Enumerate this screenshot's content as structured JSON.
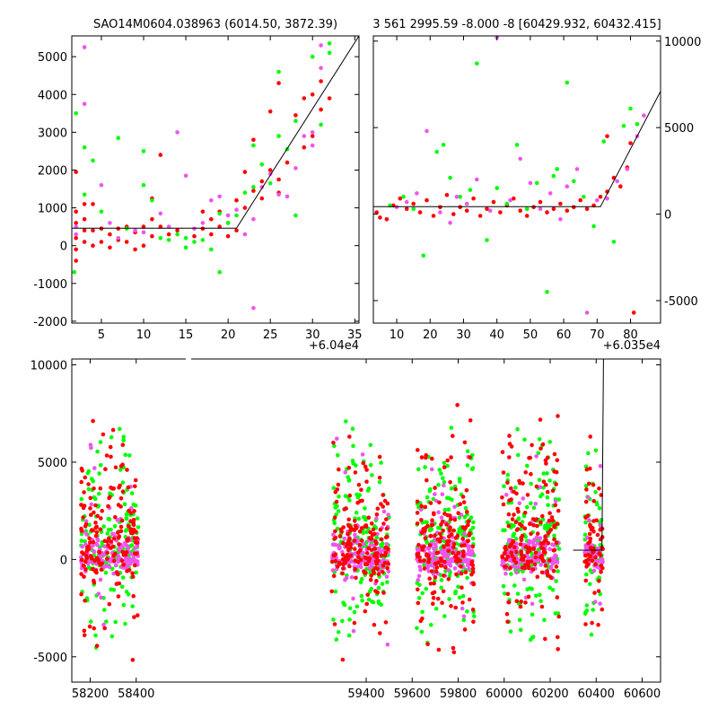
{
  "chart_data": [
    {
      "id": "top-left",
      "type": "scatter",
      "title": "SAO14M0604.038963 (6014.50, 3872.39)",
      "x_offset_label": "+6.04e4",
      "xlim": [
        1.5,
        35.5
      ],
      "ylim": [
        -2050,
        5550
      ],
      "xticks": [
        5,
        10,
        15,
        20,
        25,
        30,
        35
      ],
      "yticks": [
        -2000,
        -1000,
        0,
        1000,
        2000,
        3000,
        4000,
        5000
      ],
      "ytick_side": "left",
      "colors": {
        "red": "#ff0000",
        "green": "#00ff00",
        "magenta": "#ee55ee",
        "line": "#000000"
      },
      "model_line": [
        [
          1.5,
          460
        ],
        [
          21,
          460
        ],
        [
          35.5,
          5550
        ]
      ],
      "series": [
        {
          "color": "red",
          "points": [
            [
              2,
              1950
            ],
            [
              2,
              900
            ],
            [
              2,
              600
            ],
            [
              2,
              200
            ],
            [
              2,
              -100
            ],
            [
              2,
              -400
            ],
            [
              3,
              1100
            ],
            [
              3,
              700
            ],
            [
              3,
              400
            ],
            [
              3,
              100
            ],
            [
              4,
              1100
            ],
            [
              4,
              400
            ],
            [
              4,
              0
            ],
            [
              5,
              450
            ],
            [
              5,
              100
            ],
            [
              6,
              300
            ],
            [
              6,
              -50
            ],
            [
              7,
              450
            ],
            [
              7,
              150
            ],
            [
              8,
              500
            ],
            [
              8,
              100
            ],
            [
              9,
              350
            ],
            [
              9,
              -100
            ],
            [
              10,
              500
            ],
            [
              10,
              0
            ],
            [
              11,
              1250
            ],
            [
              11,
              700
            ],
            [
              11,
              250
            ],
            [
              12,
              2400
            ],
            [
              12,
              500
            ],
            [
              13,
              300
            ],
            [
              14,
              400
            ],
            [
              16,
              250
            ],
            [
              17,
              900
            ],
            [
              17,
              450
            ],
            [
              18,
              700
            ],
            [
              18,
              300
            ],
            [
              19,
              900
            ],
            [
              19,
              500
            ],
            [
              20,
              600
            ],
            [
              20,
              250
            ],
            [
              21,
              1200
            ],
            [
              21,
              400
            ],
            [
              22,
              1950
            ],
            [
              22,
              1000
            ],
            [
              23,
              2800
            ],
            [
              23,
              1450
            ],
            [
              24,
              1700
            ],
            [
              24,
              1250
            ],
            [
              25,
              3550
            ],
            [
              25,
              2000
            ],
            [
              26,
              4300
            ],
            [
              26,
              1750
            ],
            [
              26,
              1400
            ],
            [
              27,
              2200
            ],
            [
              28,
              3450
            ],
            [
              29,
              3900
            ],
            [
              29,
              2600
            ],
            [
              30,
              4000
            ],
            [
              30,
              2900
            ],
            [
              31,
              4350
            ],
            [
              31,
              3600
            ],
            [
              32,
              3900
            ]
          ]
        },
        {
          "color": "green",
          "points": [
            [
              1.8,
              -700
            ],
            [
              2,
              3500
            ],
            [
              3,
              2600
            ],
            [
              3,
              1350
            ],
            [
              4,
              2250
            ],
            [
              5,
              900
            ],
            [
              7,
              2850
            ],
            [
              8,
              450
            ],
            [
              10,
              2500
            ],
            [
              10,
              1600
            ],
            [
              11,
              1200
            ],
            [
              12,
              200
            ],
            [
              13,
              150
            ],
            [
              14,
              300
            ],
            [
              15,
              200
            ],
            [
              15,
              -50
            ],
            [
              16,
              100
            ],
            [
              17,
              150
            ],
            [
              18,
              -100
            ],
            [
              19,
              -700
            ],
            [
              19,
              850
            ],
            [
              20,
              600
            ],
            [
              21,
              800
            ],
            [
              22,
              1400
            ],
            [
              23,
              2650
            ],
            [
              23,
              1550
            ],
            [
              24,
              2150
            ],
            [
              25,
              1650
            ],
            [
              26,
              4600
            ],
            [
              26,
              2900
            ],
            [
              27,
              2550
            ],
            [
              28,
              3300
            ],
            [
              28,
              800
            ],
            [
              30,
              5000
            ],
            [
              31,
              3200
            ],
            [
              32,
              5350
            ],
            [
              32,
              5100
            ]
          ]
        },
        {
          "color": "magenta",
          "points": [
            [
              2,
              500
            ],
            [
              2,
              300
            ],
            [
              3,
              5250
            ],
            [
              3,
              3750
            ],
            [
              5,
              1600
            ],
            [
              6,
              600
            ],
            [
              7,
              200
            ],
            [
              9,
              400
            ],
            [
              10,
              350
            ],
            [
              12,
              850
            ],
            [
              13,
              500
            ],
            [
              14,
              3000
            ],
            [
              15,
              1850
            ],
            [
              16,
              450
            ],
            [
              17,
              600
            ],
            [
              18,
              1200
            ],
            [
              19,
              1300
            ],
            [
              20,
              800
            ],
            [
              21,
              950
            ],
            [
              22,
              300
            ],
            [
              23,
              -1650
            ],
            [
              23,
              700
            ],
            [
              24,
              1550
            ],
            [
              25,
              1900
            ],
            [
              26,
              1350
            ],
            [
              27,
              1300
            ],
            [
              28,
              2050
            ],
            [
              29,
              2900
            ],
            [
              30,
              2650
            ],
            [
              30,
              3000
            ],
            [
              31,
              4700
            ],
            [
              31,
              5300
            ]
          ]
        }
      ]
    },
    {
      "id": "top-right",
      "type": "scatter",
      "title": "3 561 2995.59 -8.000 -8 [60429.932, 60432.415]",
      "x_offset_label": "+6.035e4",
      "xlim": [
        3,
        89
      ],
      "ylim": [
        -6300,
        10300
      ],
      "xticks": [
        10,
        20,
        30,
        40,
        50,
        60,
        70,
        80
      ],
      "yticks": [
        -5000,
        0,
        5000,
        10000
      ],
      "ytick_side": "right",
      "colors": {
        "red": "#ff0000",
        "green": "#00ff00",
        "magenta": "#ee55ee",
        "line": "#000000"
      },
      "model_line": [
        [
          3,
          430
        ],
        [
          71,
          430
        ],
        [
          89,
          7100
        ]
      ],
      "series": [
        {
          "color": "red",
          "points": [
            [
              4,
              100
            ],
            [
              5,
              -200
            ],
            [
              7,
              -300
            ],
            [
              9,
              500
            ],
            [
              11,
              900
            ],
            [
              13,
              300
            ],
            [
              15,
              600
            ],
            [
              17,
              100
            ],
            [
              19,
              800
            ],
            [
              21,
              -100
            ],
            [
              23,
              400
            ],
            [
              25,
              1100
            ],
            [
              27,
              0
            ],
            [
              29,
              400
            ],
            [
              31,
              200
            ],
            [
              33,
              900
            ],
            [
              35,
              -100
            ],
            [
              37,
              300
            ],
            [
              39,
              700
            ],
            [
              41,
              100
            ],
            [
              43,
              500
            ],
            [
              45,
              900
            ],
            [
              47,
              200
            ],
            [
              49,
              -100
            ],
            [
              51,
              400
            ],
            [
              53,
              700
            ],
            [
              55,
              100
            ],
            [
              57,
              300
            ],
            [
              59,
              600
            ],
            [
              61,
              200
            ],
            [
              63,
              400
            ],
            [
              65,
              800
            ],
            [
              67,
              300
            ],
            [
              69,
              500
            ],
            [
              71,
              1000
            ],
            [
              73,
              1300
            ],
            [
              73,
              4500
            ],
            [
              75,
              2100
            ],
            [
              77,
              1600
            ],
            [
              79,
              2700
            ],
            [
              80,
              4100
            ],
            [
              81,
              -5700
            ]
          ]
        },
        {
          "color": "green",
          "points": [
            [
              8,
              500
            ],
            [
              12,
              1000
            ],
            [
              15,
              300
            ],
            [
              18,
              -2400
            ],
            [
              22,
              3600
            ],
            [
              24,
              4000
            ],
            [
              26,
              2100
            ],
            [
              29,
              1000
            ],
            [
              32,
              1400
            ],
            [
              34,
              8700
            ],
            [
              37,
              -1500
            ],
            [
              40,
              1500
            ],
            [
              43,
              600
            ],
            [
              46,
              4000
            ],
            [
              49,
              300
            ],
            [
              52,
              1800
            ],
            [
              55,
              -4500
            ],
            [
              57,
              2200
            ],
            [
              58,
              2600
            ],
            [
              61,
              7600
            ],
            [
              63,
              1900
            ],
            [
              66,
              1000
            ],
            [
              69,
              -700
            ],
            [
              72,
              4200
            ],
            [
              75,
              -1600
            ],
            [
              78,
              5100
            ],
            [
              80,
              6100
            ],
            [
              82,
              5200
            ]
          ]
        },
        {
          "color": "magenta",
          "points": [
            [
              10,
              400
            ],
            [
              13,
              700
            ],
            [
              16,
              1200
            ],
            [
              19,
              4800
            ],
            [
              23,
              100
            ],
            [
              26,
              -500
            ],
            [
              28,
              1000
            ],
            [
              31,
              600
            ],
            [
              34,
              2000
            ],
            [
              38,
              200
            ],
            [
              40,
              10200
            ],
            [
              44,
              800
            ],
            [
              47,
              3200
            ],
            [
              50,
              1800
            ],
            [
              53,
              300
            ],
            [
              56,
              1200
            ],
            [
              59,
              -300
            ],
            [
              61,
              1600
            ],
            [
              64,
              2600
            ],
            [
              67,
              -5700
            ],
            [
              70,
              800
            ],
            [
              73,
              900
            ],
            [
              76,
              1900
            ],
            [
              79,
              2600
            ],
            [
              82,
              4500
            ],
            [
              84,
              5700
            ]
          ]
        }
      ]
    },
    {
      "id": "bottom",
      "type": "scatter",
      "xlim": [
        58120,
        60680
      ],
      "ylim": [
        -6300,
        10300
      ],
      "xticks": [
        58200,
        58400,
        59400,
        59600,
        59800,
        60000,
        60200,
        60400,
        60600
      ],
      "yticks": [
        -5000,
        0,
        5000,
        10000
      ],
      "ytick_side": "left",
      "colors": {
        "red": "#ff0000",
        "green": "#00ff00",
        "magenta": "#ee55ee",
        "line": "#000000"
      },
      "clusters": [
        {
          "x_range": [
            58160,
            58410
          ],
          "center": 58300
        },
        {
          "x_range": [
            59250,
            59500
          ],
          "center": 59380
        },
        {
          "x_range": [
            59620,
            59870
          ],
          "center": 59750
        },
        {
          "x_range": [
            59990,
            60240
          ],
          "center": 60110
        },
        {
          "x_range": [
            60350,
            60430
          ],
          "center": 60390
        }
      ],
      "model_line": [
        [
          60300,
          480
        ],
        [
          60425,
          480
        ],
        [
          60432,
          10300
        ]
      ]
    }
  ]
}
